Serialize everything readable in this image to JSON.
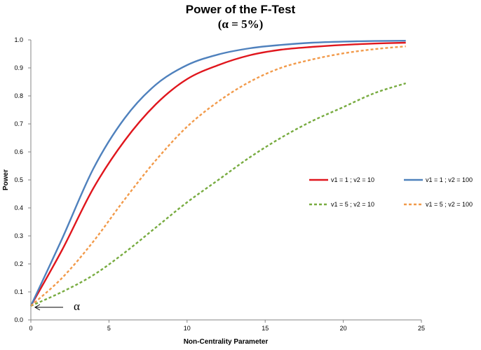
{
  "chart_data": {
    "type": "line",
    "title": "Power of the F-Test",
    "subtitle": "(α = 5%)",
    "xlabel": "Non-Centrality  Parameter",
    "ylabel": "Power",
    "xlim": [
      0,
      25
    ],
    "ylim": [
      0,
      1.0
    ],
    "x_ticks": [
      "0",
      "5",
      "10",
      "15",
      "20",
      "25"
    ],
    "y_ticks": [
      "0.0",
      "0.1",
      "0.2",
      "0.3",
      "0.4",
      "0.5",
      "0.6",
      "0.7",
      "0.8",
      "0.9",
      "1.0"
    ],
    "grid": false,
    "legend_position": "right",
    "x": [
      0,
      2,
      4,
      6,
      8,
      10,
      12,
      14,
      16,
      18,
      20,
      22,
      24
    ],
    "series": [
      {
        "name": "v1 = 1 ; v2 = 10",
        "color": "#e0161d",
        "dashed": false,
        "values": [
          0.05,
          0.25,
          0.47,
          0.64,
          0.77,
          0.86,
          0.91,
          0.945,
          0.965,
          0.975,
          0.982,
          0.987,
          0.99
        ]
      },
      {
        "name": "v1 = 1 ; v2 = 100",
        "color": "#4f81bd",
        "dashed": false,
        "values": [
          0.05,
          0.29,
          0.54,
          0.72,
          0.84,
          0.91,
          0.948,
          0.97,
          0.982,
          0.99,
          0.994,
          0.996,
          0.997
        ]
      },
      {
        "name": "v1 = 5 ; v2 = 10",
        "color": "#77ab3f",
        "dashed": true,
        "values": [
          0.05,
          0.1,
          0.16,
          0.24,
          0.33,
          0.42,
          0.5,
          0.58,
          0.65,
          0.71,
          0.76,
          0.81,
          0.845
        ]
      },
      {
        "name": "v1 = 5 ; v2 = 100",
        "color": "#f29a4a",
        "dashed": true,
        "values": [
          0.05,
          0.15,
          0.28,
          0.43,
          0.57,
          0.69,
          0.78,
          0.85,
          0.9,
          0.93,
          0.952,
          0.967,
          0.977
        ]
      }
    ],
    "annotation": "α"
  }
}
